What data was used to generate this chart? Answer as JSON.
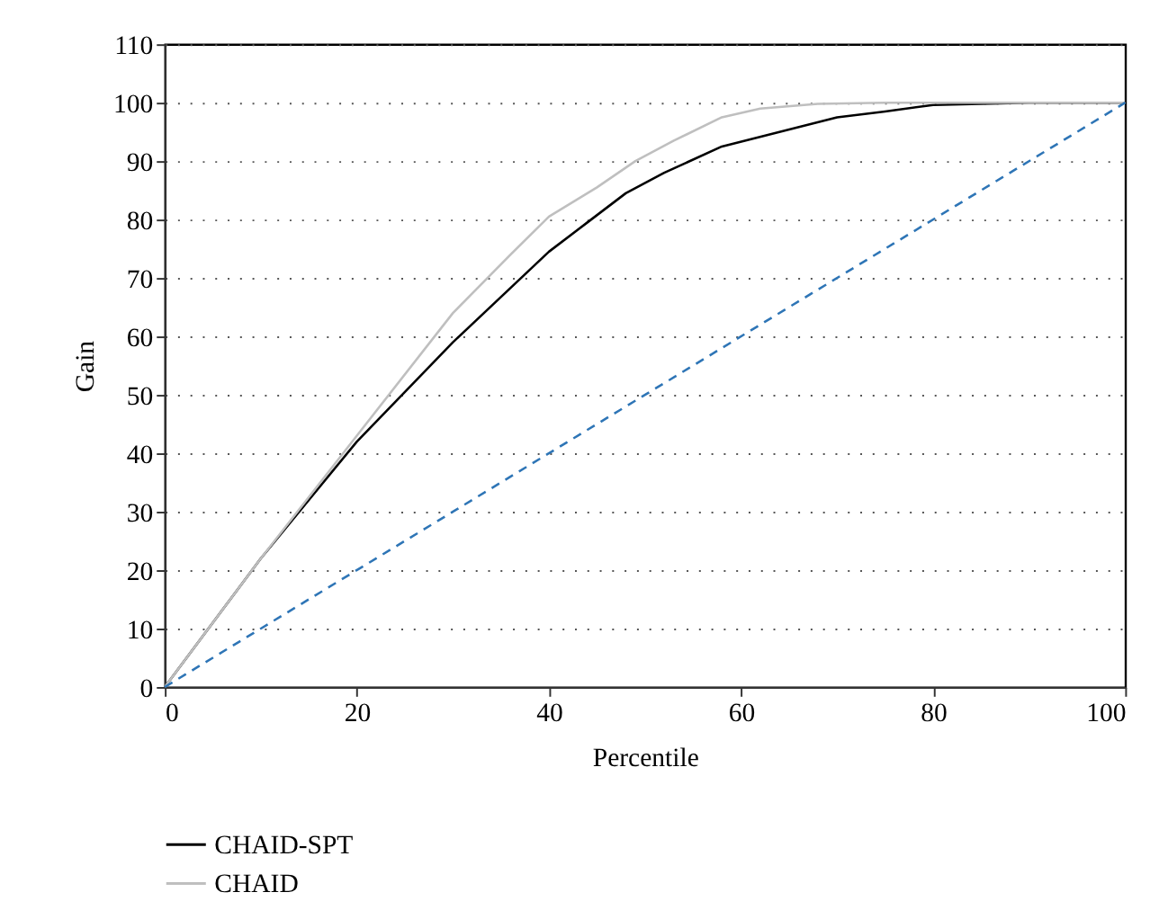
{
  "chart_data": {
    "type": "line",
    "xlabel": "Percentile",
    "ylabel": "Gain",
    "xlim": [
      0,
      100
    ],
    "ylim": [
      0,
      110
    ],
    "xticks": [
      0,
      20,
      40,
      60,
      80,
      100
    ],
    "yticks": [
      0,
      10,
      20,
      30,
      40,
      50,
      60,
      70,
      80,
      90,
      100,
      110
    ],
    "grid": "y",
    "legend": "bottom",
    "marker": "none",
    "series": [
      {
        "name": "CHAID-SPT",
        "color": "#000000",
        "line_style": "solid",
        "x": [
          0,
          10,
          20,
          30,
          40,
          44,
          48,
          52,
          58,
          64,
          70,
          75,
          80,
          90,
          100
        ],
        "values": [
          0,
          22,
          42,
          59,
          74.5,
          79.5,
          84.5,
          88,
          92.5,
          95,
          97.5,
          98.5,
          99.6,
          100,
          100
        ]
      },
      {
        "name": "CHAID",
        "color": "#bfbfbf",
        "line_style": "solid",
        "x": [
          0,
          10,
          20,
          30,
          36,
          40,
          45,
          49,
          53,
          58,
          62,
          68,
          75,
          80,
          90,
          100
        ],
        "values": [
          0,
          22,
          43,
          64,
          74,
          80.5,
          85.5,
          90,
          93.5,
          97.5,
          99,
          99.8,
          100,
          100,
          100,
          100
        ]
      },
      {
        "color": "#2e75b6",
        "line_style": "dashed",
        "x": [
          0,
          100
        ],
        "values": [
          0,
          100
        ]
      }
    ]
  }
}
